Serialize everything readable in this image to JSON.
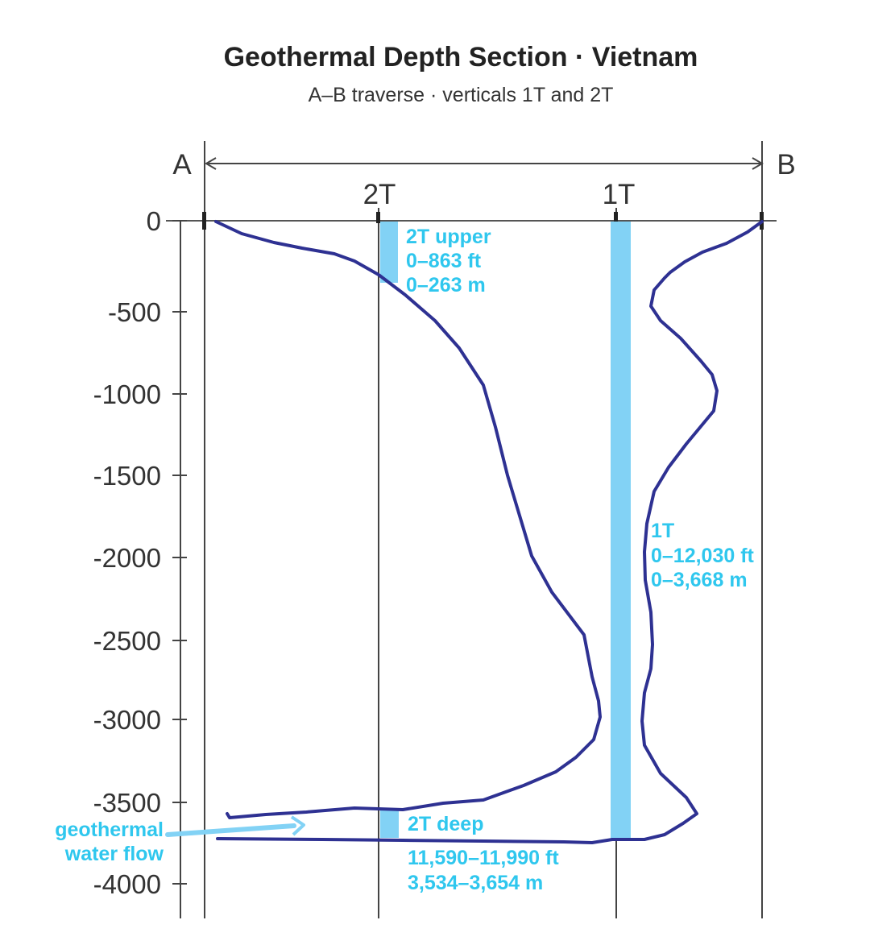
{
  "title": "Geothermal Depth Section · Vietnam",
  "subtitle": "A–B traverse · verticals 1T and 2T",
  "endpoints": {
    "a": "A",
    "b": "B"
  },
  "verticals": {
    "v2t": "2T",
    "v1t": "1T"
  },
  "depth_ticks": [
    "0",
    "-500",
    "-1000",
    "-1500",
    "-2000",
    "-2500",
    "-3000",
    "-3500",
    "-4000"
  ],
  "annotations": {
    "upper_2t": {
      "l1": "2T upper",
      "l2": "0–863 ft",
      "l3": "0–263 m"
    },
    "well_1t": {
      "l1": "1T",
      "l2": "0–12,030 ft",
      "l3": "0–3,668 m"
    },
    "deep_2t": {
      "l1": "2T deep",
      "l2": "11,590–11,990 ft",
      "l3": "3,534–3,654 m"
    },
    "flow": {
      "l1": "geothermal",
      "l2": "water flow"
    }
  },
  "colors": {
    "profile": "#2e3192",
    "highlight": "#82d2f5",
    "label": "#2fc7ee",
    "axis": "#333333"
  },
  "chart_data": {
    "type": "line",
    "y_axis": {
      "ticks": [
        0,
        -500,
        -1000,
        -1500,
        -2000,
        -2500,
        -3000,
        -3500,
        -4000
      ],
      "range": [
        -4200,
        0
      ]
    },
    "verticals": [
      "2T",
      "1T"
    ],
    "intervals": [
      {
        "well": "2T",
        "label": "2T upper",
        "from_m": 0,
        "to_m": 263,
        "from_ft": 0,
        "to_ft": 863
      },
      {
        "well": "1T",
        "label": "1T",
        "from_m": 0,
        "to_m": 3668,
        "from_ft": 0,
        "to_ft": 12030
      },
      {
        "well": "2T",
        "label": "2T deep",
        "from_m": 3534,
        "to_m": 3654,
        "from_ft": 11590,
        "to_ft": 11990
      }
    ]
  }
}
